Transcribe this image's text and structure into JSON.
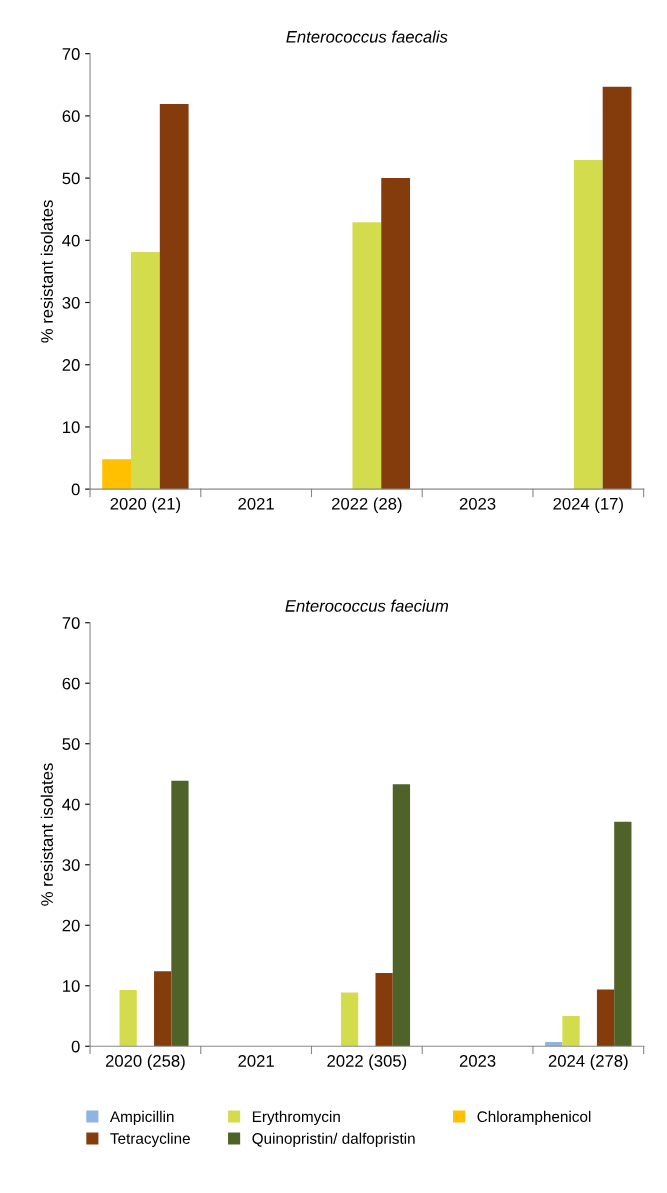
{
  "chart_data": [
    {
      "type": "bar",
      "title": "Enterococcus faecalis",
      "ylabel": "% resistant isolates",
      "categories": [
        "2020 (21)",
        "2021",
        "2022 (28)",
        "2023",
        "2024 (17)"
      ],
      "ylim": [
        0,
        70
      ],
      "yticks": [
        0,
        10,
        20,
        30,
        40,
        50,
        60,
        70
      ],
      "grid": false,
      "series": [
        {
          "color": "#ffc000",
          "values": [
            4.8,
            null,
            0,
            null,
            0
          ]
        },
        {
          "color": "#d3dc4c",
          "values": [
            38.1,
            null,
            42.9,
            null,
            52.9
          ]
        },
        {
          "color": "#843c0c",
          "values": [
            61.9,
            null,
            50.0,
            null,
            64.7
          ]
        }
      ]
    },
    {
      "type": "bar",
      "title": "Enterococcus faecium",
      "ylabel": "% resistant isolates",
      "categories": [
        "2020 (258)",
        "2021",
        "2022 (305)",
        "2023",
        "2024 (278)"
      ],
      "ylim": [
        0,
        70
      ],
      "yticks": [
        0,
        10,
        20,
        30,
        40,
        50,
        60,
        70
      ],
      "grid": false,
      "legend": "bottom",
      "series": [
        {
          "name": "Ampicillin",
          "color": "#8db4e2",
          "values": [
            0,
            null,
            0,
            null,
            0.7
          ]
        },
        {
          "name": "Erythromycin",
          "color": "#d3dc4c",
          "values": [
            9.3,
            null,
            8.9,
            null,
            5.0
          ]
        },
        {
          "name": "Chloramphenicol",
          "color": "#ffc000",
          "values": [
            0,
            null,
            0,
            null,
            0
          ]
        },
        {
          "name": "Tetracycline",
          "color": "#843c0c",
          "values": [
            12.4,
            null,
            12.1,
            null,
            9.4
          ]
        },
        {
          "name": "Quinopristin/ dalfopristin",
          "color": "#4f6228",
          "values": [
            43.9,
            null,
            43.3,
            null,
            37.1
          ]
        }
      ]
    }
  ]
}
